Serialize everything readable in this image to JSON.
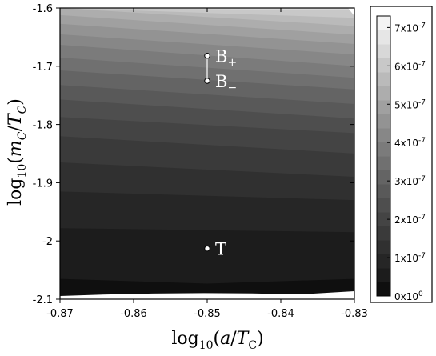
{
  "chart_data": {
    "type": "contour",
    "xlabel": "log10(a/TC)",
    "ylabel": "log10(mC/TC)",
    "xlim": [
      -0.87,
      -0.83
    ],
    "ylim": [
      -2.1,
      -1.6
    ],
    "xticks": [
      "-0.87",
      "-0.86",
      "-0.85",
      "-0.84",
      "-0.83"
    ],
    "yticks": [
      "-1.6",
      "-1.7",
      "-1.8",
      "-1.9",
      "-2",
      "-2.1"
    ],
    "points": [
      {
        "label": "B+",
        "x": -0.85,
        "y": -1.682
      },
      {
        "label": "B−",
        "x": -0.85,
        "y": -1.725
      },
      {
        "label": "T",
        "x": -0.85,
        "y": -2.013
      }
    ],
    "colorbar": {
      "min": 0,
      "max": 7.3e-07,
      "ticks": [
        {
          "value": 0,
          "label": "0x10",
          "exp": "0"
        },
        {
          "value": 1e-07,
          "label": "1x10",
          "exp": "-7"
        },
        {
          "value": 2e-07,
          "label": "2x10",
          "exp": "-7"
        },
        {
          "value": 3e-07,
          "label": "3x10",
          "exp": "-7"
        },
        {
          "value": 4e-07,
          "label": "4x10",
          "exp": "-7"
        },
        {
          "value": 5e-07,
          "label": "5x10",
          "exp": "-7"
        },
        {
          "value": 6e-07,
          "label": "6x10",
          "exp": "-7"
        },
        {
          "value": 7e-07,
          "label": "7x10",
          "exp": "-7"
        }
      ]
    },
    "contour_bands": [
      {
        "y_left": -2.1,
        "y_right": -2.1,
        "shade": "#0f0f0f"
      },
      {
        "y_left": -2.065,
        "y_right": -2.065,
        "shade": "#1c1c1c"
      },
      {
        "y_left": -1.978,
        "y_right": -1.985,
        "shade": "#262626"
      },
      {
        "y_left": -1.915,
        "y_right": -1.93,
        "shade": "#303030"
      },
      {
        "y_left": -1.865,
        "y_right": -1.89,
        "shade": "#3a3a3a"
      },
      {
        "y_left": -1.82,
        "y_right": -1.85,
        "shade": "#444444"
      },
      {
        "y_left": -1.787,
        "y_right": -1.815,
        "shade": "#4e4e4e"
      },
      {
        "y_left": -1.757,
        "y_right": -1.79,
        "shade": "#595959"
      },
      {
        "y_left": -1.732,
        "y_right": -1.765,
        "shade": "#646464"
      },
      {
        "y_left": -1.707,
        "y_right": -1.74,
        "shade": "#707070"
      },
      {
        "y_left": -1.685,
        "y_right": -1.72,
        "shade": "#7b7b7b"
      },
      {
        "y_left": -1.663,
        "y_right": -1.7,
        "shade": "#878787"
      },
      {
        "y_left": -1.645,
        "y_right": -1.68,
        "shade": "#939393"
      },
      {
        "y_left": -1.627,
        "y_right": -1.662,
        "shade": "#a0a0a0"
      },
      {
        "y_left": -1.612,
        "y_right": -1.646,
        "shade": "#adadad"
      },
      {
        "y_left": -1.6,
        "y_right": -1.631,
        "shade": "#bababa"
      },
      {
        "y_left": -1.6,
        "y_right": -1.617,
        "shade": "#c8c8c8"
      },
      {
        "y_left": -1.6,
        "y_right": -1.604,
        "shade": "#d8d8d8"
      }
    ]
  }
}
